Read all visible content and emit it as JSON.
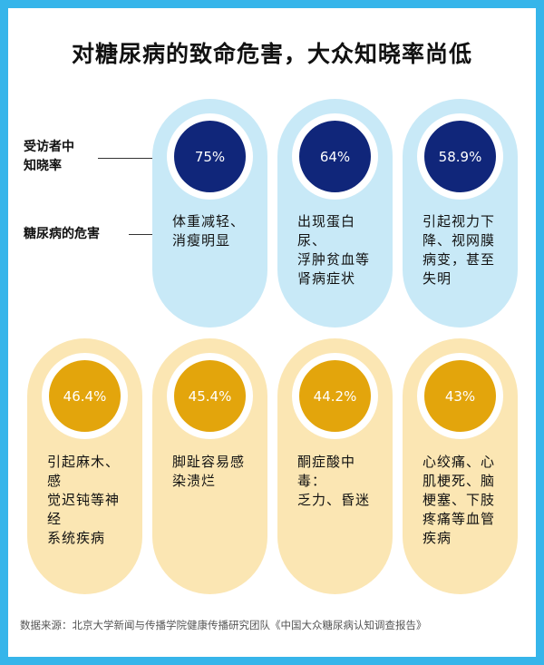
{
  "title": "对糖尿病的致命危害，大众知晓率尚低",
  "legend": {
    "awareness_line1": "受访者中",
    "awareness_line2": "知晓率",
    "harm_label": "糖尿病的危害"
  },
  "items": [
    {
      "percent": "75%",
      "harm_line1": "体重减轻、",
      "harm_line2": "消瘦明显",
      "harm_line3": "",
      "harm_line4": ""
    },
    {
      "percent": "64%",
      "harm_line1": "出现蛋白尿、",
      "harm_line2": "浮肿贫血等",
      "harm_line3": "肾病症状",
      "harm_line4": ""
    },
    {
      "percent": "58.9%",
      "harm_line1": "引起视力下",
      "harm_line2": "降、视网膜",
      "harm_line3": "病变，甚至",
      "harm_line4": "失明"
    },
    {
      "percent": "46.4%",
      "harm_line1": "引起麻木、感",
      "harm_line2": "觉迟钝等神经",
      "harm_line3": "系统疾病",
      "harm_line4": ""
    },
    {
      "percent": "45.4%",
      "harm_line1": "脚趾容易感",
      "harm_line2": "染溃烂",
      "harm_line3": "",
      "harm_line4": ""
    },
    {
      "percent": "44.2%",
      "harm_line1": "酮症酸中毒：",
      "harm_line2": "乏力、昏迷",
      "harm_line3": "",
      "harm_line4": ""
    },
    {
      "percent": "43%",
      "harm_line1": "心绞痛、心",
      "harm_line2": "肌梗死、脑",
      "harm_line3": "梗塞、下肢",
      "harm_line4": "疼痛等血管",
      "harm_line5": "疾病"
    }
  ],
  "colors": {
    "border": "#36b5ea",
    "blue_pill": "#c8e9f7",
    "blue_circle": "#10267a",
    "yellow_pill": "#fbe6b3",
    "yellow_circle": "#e3a50c"
  },
  "source": "数据来源：北京大学新闻与传播学院健康传播研究团队《中国大众糖尿病认知调查报告》"
}
